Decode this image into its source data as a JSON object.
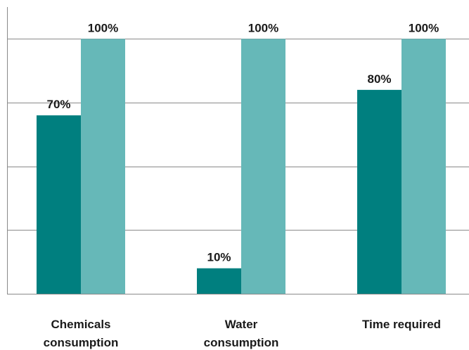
{
  "chart_data": {
    "type": "bar",
    "categories": [
      [
        "Chemicals",
        "consumption"
      ],
      [
        "Water",
        "consumption"
      ],
      [
        "Time required"
      ]
    ],
    "series": [
      {
        "values": [
          70,
          10,
          80
        ],
        "labels": [
          "70%",
          "10%",
          "80%"
        ],
        "color": "#007f7f"
      },
      {
        "values": [
          100,
          100,
          100
        ],
        "labels": [
          "100%",
          "100%",
          "100%"
        ],
        "color": "#66b8b8"
      }
    ],
    "ylim": [
      0,
      112.5
    ],
    "grid": true,
    "legend": "none"
  },
  "colors": {
    "background": "#ffffff",
    "gridline": "#8a8a8a"
  }
}
